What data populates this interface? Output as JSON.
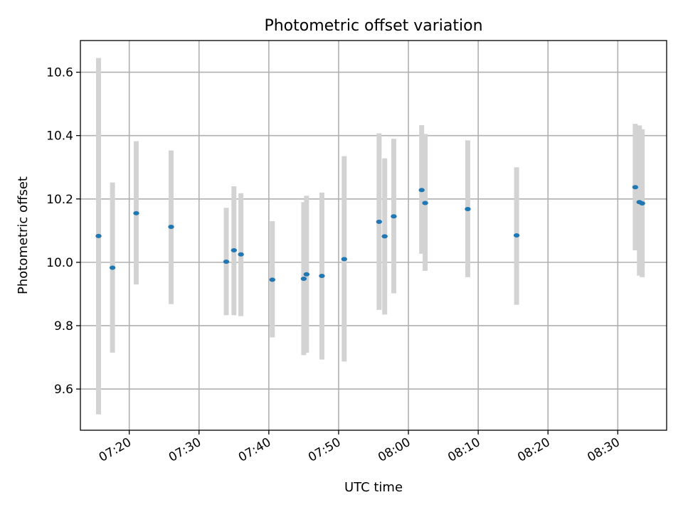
{
  "chart_data": {
    "type": "scatter",
    "title": "Photometric offset variation",
    "xlabel": "UTC time",
    "ylabel": "Photometric offset",
    "xlim": [
      "07:13:00",
      "08:37:00"
    ],
    "ylim": [
      9.47,
      10.7
    ],
    "x_ticks": [
      "07:20",
      "07:30",
      "07:40",
      "07:50",
      "08:00",
      "08:10",
      "08:20",
      "08:30"
    ],
    "y_ticks": [
      "9.6",
      "9.8",
      "10.0",
      "10.2",
      "10.4",
      "10.6"
    ],
    "grid": true,
    "colors": {
      "marker": "#1f77b4",
      "errorbar": "#d3d3d3",
      "grid": "#b0b0b0"
    },
    "points": [
      {
        "x": "07:15:36",
        "y": 10.083,
        "yerr_low": 9.52,
        "yerr_high": 10.645
      },
      {
        "x": "07:17:36",
        "y": 9.983,
        "yerr_low": 9.715,
        "yerr_high": 10.252
      },
      {
        "x": "07:21:00",
        "y": 10.155,
        "yerr_low": 9.93,
        "yerr_high": 10.382
      },
      {
        "x": "07:26:00",
        "y": 10.112,
        "yerr_low": 9.868,
        "yerr_high": 10.353
      },
      {
        "x": "07:33:54",
        "y": 10.002,
        "yerr_low": 9.833,
        "yerr_high": 10.172
      },
      {
        "x": "07:35:00",
        "y": 10.038,
        "yerr_low": 9.833,
        "yerr_high": 10.24
      },
      {
        "x": "07:36:00",
        "y": 10.025,
        "yerr_low": 9.83,
        "yerr_high": 10.218
      },
      {
        "x": "07:40:30",
        "y": 9.945,
        "yerr_low": 9.763,
        "yerr_high": 10.13
      },
      {
        "x": "07:45:00",
        "y": 9.948,
        "yerr_low": 9.707,
        "yerr_high": 10.19
      },
      {
        "x": "07:45:24",
        "y": 9.962,
        "yerr_low": 9.715,
        "yerr_high": 10.21
      },
      {
        "x": "07:47:36",
        "y": 9.957,
        "yerr_low": 9.693,
        "yerr_high": 10.22
      },
      {
        "x": "07:50:48",
        "y": 10.01,
        "yerr_low": 9.687,
        "yerr_high": 10.335
      },
      {
        "x": "07:55:48",
        "y": 10.128,
        "yerr_low": 9.85,
        "yerr_high": 10.407
      },
      {
        "x": "07:56:36",
        "y": 10.082,
        "yerr_low": 9.835,
        "yerr_high": 10.328
      },
      {
        "x": "07:57:54",
        "y": 10.145,
        "yerr_low": 9.902,
        "yerr_high": 10.39
      },
      {
        "x": "08:01:54",
        "y": 10.228,
        "yerr_low": 10.027,
        "yerr_high": 10.433
      },
      {
        "x": "08:02:24",
        "y": 10.187,
        "yerr_low": 9.973,
        "yerr_high": 10.405
      },
      {
        "x": "08:08:30",
        "y": 10.168,
        "yerr_low": 9.953,
        "yerr_high": 10.385
      },
      {
        "x": "08:15:30",
        "y": 10.085,
        "yerr_low": 9.866,
        "yerr_high": 10.3
      },
      {
        "x": "08:32:30",
        "y": 10.237,
        "yerr_low": 10.038,
        "yerr_high": 10.437
      },
      {
        "x": "08:33:06",
        "y": 10.19,
        "yerr_low": 9.958,
        "yerr_high": 10.432
      },
      {
        "x": "08:33:30",
        "y": 10.186,
        "yerr_low": 9.953,
        "yerr_high": 10.42
      }
    ]
  }
}
